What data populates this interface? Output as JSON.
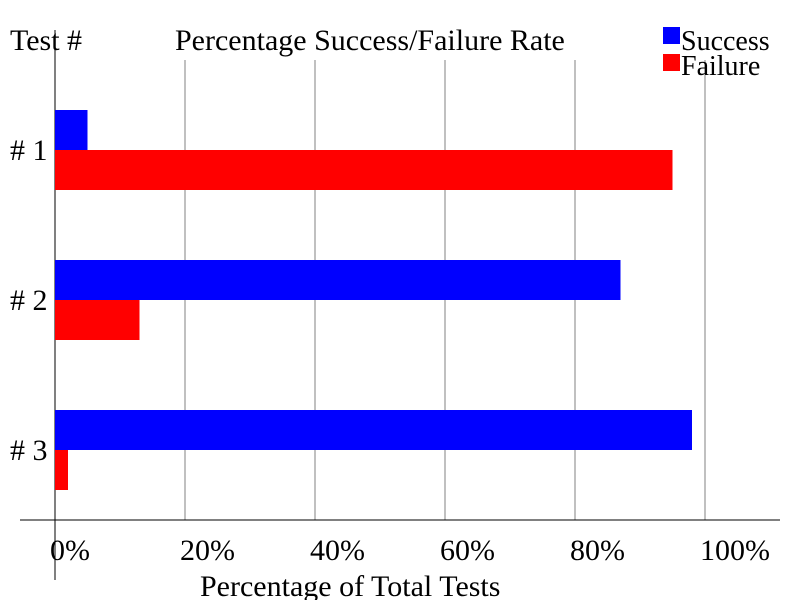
{
  "chart_data": {
    "type": "bar",
    "orientation": "horizontal",
    "title": "Percentage Success/Failure Rate",
    "ylabel": "Test #",
    "xlabel": "Percentage of Total Tests",
    "categories": [
      "# 1",
      "# 2",
      "# 3"
    ],
    "series": [
      {
        "name": "Success",
        "color": "#0000ff",
        "values": [
          5,
          87,
          98
        ]
      },
      {
        "name": "Failure",
        "color": "#ff0000",
        "values": [
          95,
          13,
          2
        ]
      }
    ],
    "xlim": [
      0,
      100
    ],
    "xticks": [
      "0%",
      "20%",
      "40%",
      "60%",
      "80%",
      "100%"
    ],
    "grid": true,
    "legend": "top-right"
  }
}
